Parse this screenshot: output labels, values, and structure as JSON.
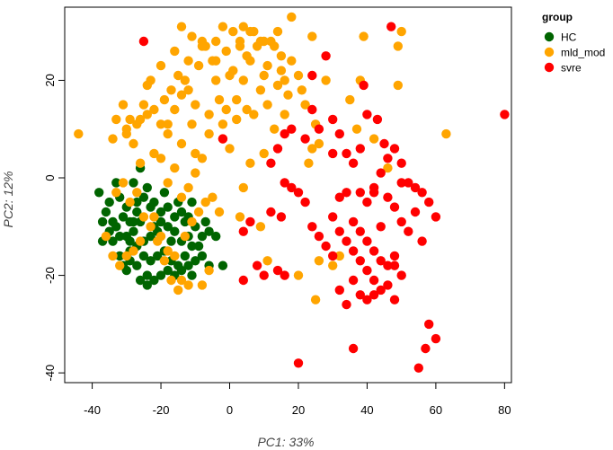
{
  "chart_data": {
    "type": "scatter",
    "xlabel": "PC1: 33%",
    "ylabel": "PC2: 12%",
    "xlim": [
      -48,
      82
    ],
    "ylim": [
      -42,
      35
    ],
    "xticks": [
      -40,
      -20,
      0,
      20,
      40,
      60,
      80
    ],
    "yticks": [
      -40,
      -20,
      0,
      20
    ],
    "grid": false,
    "legend": {
      "title": "group",
      "position": "top-right"
    },
    "series": [
      {
        "name": "HC",
        "color": "#006400",
        "points": [
          [
            -38,
            -3
          ],
          [
            -36,
            -7
          ],
          [
            -35,
            -5
          ],
          [
            -33,
            -1
          ],
          [
            -32,
            -4
          ],
          [
            -34,
            -9
          ],
          [
            -37,
            -9
          ],
          [
            -35,
            -11
          ],
          [
            -33,
            -10
          ],
          [
            -31,
            -8
          ],
          [
            -30,
            -6
          ],
          [
            -29,
            -9
          ],
          [
            -27,
            -7
          ],
          [
            -26,
            -9
          ],
          [
            -28,
            -11
          ],
          [
            -30,
            -12
          ],
          [
            -32,
            -12
          ],
          [
            -34,
            -13
          ],
          [
            -37,
            -13
          ],
          [
            -32,
            -16
          ],
          [
            -29,
            -15
          ],
          [
            -27,
            -14
          ],
          [
            -25,
            -13
          ],
          [
            -23,
            -12
          ],
          [
            -22,
            -10
          ],
          [
            -20,
            -9
          ],
          [
            -18,
            -10
          ],
          [
            -16,
            -11
          ],
          [
            -14,
            -13
          ],
          [
            -12,
            -12
          ],
          [
            -10,
            -10
          ],
          [
            -8,
            -12
          ],
          [
            -6,
            -11
          ],
          [
            -4,
            -12
          ],
          [
            -11,
            -14
          ],
          [
            -13,
            -16
          ],
          [
            -15,
            -18
          ],
          [
            -17,
            -17
          ],
          [
            -19,
            -15
          ],
          [
            -21,
            -16
          ],
          [
            -23,
            -17
          ],
          [
            -25,
            -16
          ],
          [
            -27,
            -18
          ],
          [
            -29,
            -17
          ],
          [
            -31,
            -18
          ],
          [
            -30,
            -19
          ],
          [
            -24,
            -20
          ],
          [
            -22,
            -21
          ],
          [
            -20,
            -20
          ],
          [
            -18,
            -19
          ],
          [
            -16,
            -20
          ],
          [
            -14,
            -19
          ],
          [
            -12,
            -18
          ],
          [
            -10,
            -17
          ],
          [
            -8,
            -16
          ],
          [
            -6,
            -18
          ],
          [
            -24,
            -22
          ],
          [
            -26,
            -21
          ],
          [
            -28,
            -1
          ],
          [
            -26,
            2
          ],
          [
            -24,
            -2
          ],
          [
            -22,
            -5
          ],
          [
            -20,
            -7
          ],
          [
            -18,
            -6
          ],
          [
            -16,
            -8
          ],
          [
            -14,
            -7
          ],
          [
            -12,
            -8
          ],
          [
            -15,
            -5
          ],
          [
            -19,
            -3
          ],
          [
            -23,
            -6
          ],
          [
            -25,
            -4
          ],
          [
            -27,
            -5
          ],
          [
            -21,
            -11
          ],
          [
            -17,
            -13
          ],
          [
            -13,
            -9
          ],
          [
            -9,
            -14
          ],
          [
            -11,
            -20
          ],
          [
            -2,
            -18
          ],
          [
            -7,
            -9
          ],
          [
            -11,
            -5
          ],
          [
            -28,
            -9
          ],
          [
            -29,
            -13
          ]
        ]
      },
      {
        "name": "mld_mod",
        "color": "#FFA500",
        "points": [
          [
            -44,
            9
          ],
          [
            -34,
            8
          ],
          [
            -33,
            12
          ],
          [
            -31,
            15
          ],
          [
            -30,
            9
          ],
          [
            -29,
            12
          ],
          [
            -28,
            7
          ],
          [
            -27,
            11
          ],
          [
            -26,
            3
          ],
          [
            -25,
            15
          ],
          [
            -24,
            13
          ],
          [
            -23,
            20
          ],
          [
            -22,
            5
          ],
          [
            -20,
            11
          ],
          [
            -19,
            16
          ],
          [
            -18,
            9
          ],
          [
            -17,
            18
          ],
          [
            -16,
            14
          ],
          [
            -15,
            21
          ],
          [
            -14,
            17
          ],
          [
            -13,
            20
          ],
          [
            -12,
            24
          ],
          [
            -11,
            11
          ],
          [
            -10,
            15
          ],
          [
            -9,
            23
          ],
          [
            -8,
            28
          ],
          [
            -7,
            27
          ],
          [
            -6,
            13
          ],
          [
            -5,
            24
          ],
          [
            -4,
            20
          ],
          [
            -3,
            16
          ],
          [
            -2,
            11
          ],
          [
            -1,
            14
          ],
          [
            0,
            6
          ],
          [
            1,
            22
          ],
          [
            2,
            16
          ],
          [
            3,
            28
          ],
          [
            4,
            20
          ],
          [
            5,
            14
          ],
          [
            6,
            24
          ],
          [
            7,
            13
          ],
          [
            8,
            27
          ],
          [
            9,
            18
          ],
          [
            10,
            21
          ],
          [
            11,
            15
          ],
          [
            12,
            28
          ],
          [
            13,
            10
          ],
          [
            14,
            19
          ],
          [
            15,
            22
          ],
          [
            16,
            13
          ],
          [
            17,
            17
          ],
          [
            18,
            24
          ],
          [
            -14,
            31
          ],
          [
            -11,
            29
          ],
          [
            -8,
            27
          ],
          [
            -4,
            28
          ],
          [
            -1,
            26
          ],
          [
            1,
            30
          ],
          [
            4,
            31
          ],
          [
            3,
            27
          ],
          [
            5,
            25
          ],
          [
            7,
            30
          ],
          [
            9,
            28
          ],
          [
            11,
            23
          ],
          [
            13,
            27
          ],
          [
            16,
            20
          ],
          [
            18,
            33
          ],
          [
            20,
            21
          ],
          [
            22,
            15
          ],
          [
            24,
            29
          ],
          [
            25,
            11
          ],
          [
            26,
            7
          ],
          [
            24,
            6
          ],
          [
            23,
            3
          ],
          [
            25,
            -25
          ],
          [
            35,
            16
          ],
          [
            37,
            10
          ],
          [
            39,
            29
          ],
          [
            42,
            8
          ],
          [
            49,
            27
          ],
          [
            49,
            19
          ],
          [
            50,
            30
          ],
          [
            63,
            9
          ],
          [
            46,
            2
          ],
          [
            -24,
            19
          ],
          [
            -20,
            4
          ],
          [
            -18,
            -1
          ],
          [
            -16,
            2
          ],
          [
            -14,
            -4
          ],
          [
            -12,
            -2
          ],
          [
            -10,
            1
          ],
          [
            -22,
            -8
          ],
          [
            -20,
            -12
          ],
          [
            -18,
            -15
          ],
          [
            -16,
            -16
          ],
          [
            -14,
            -21
          ],
          [
            -12,
            -22
          ],
          [
            -8,
            -22
          ],
          [
            -6,
            -19
          ],
          [
            -26,
            -13
          ],
          [
            -28,
            -15
          ],
          [
            -30,
            -16
          ],
          [
            -32,
            -18
          ],
          [
            -34,
            -16
          ],
          [
            -36,
            -12
          ],
          [
            -33,
            -3
          ],
          [
            -31,
            -1
          ],
          [
            -29,
            -5
          ],
          [
            -27,
            -3
          ],
          [
            -25,
            -8
          ],
          [
            -23,
            -10
          ],
          [
            -21,
            -13
          ],
          [
            -19,
            -17
          ],
          [
            -17,
            -21
          ],
          [
            -15,
            -23
          ],
          [
            -13,
            -12
          ],
          [
            -11,
            -9
          ],
          [
            -9,
            -7
          ],
          [
            -7,
            -5
          ],
          [
            -5,
            -4
          ],
          [
            -3,
            -7
          ],
          [
            3,
            -8
          ],
          [
            4,
            -2
          ],
          [
            9,
            -10
          ],
          [
            11,
            -17
          ],
          [
            20,
            -20
          ],
          [
            26,
            -17
          ],
          [
            30,
            -18
          ],
          [
            32,
            -16
          ],
          [
            6,
            3
          ],
          [
            2,
            12
          ],
          [
            -2,
            8
          ],
          [
            -6,
            9
          ],
          [
            -10,
            5
          ],
          [
            -14,
            7
          ],
          [
            -18,
            11
          ],
          [
            -22,
            14
          ],
          [
            -26,
            12
          ],
          [
            -30,
            10
          ],
          [
            10,
            28
          ],
          [
            14,
            30
          ],
          [
            -2,
            31
          ],
          [
            -16,
            26
          ],
          [
            -20,
            23
          ],
          [
            -12,
            18
          ],
          [
            -4,
            24
          ],
          [
            0,
            21
          ],
          [
            6,
            30
          ],
          [
            15,
            25
          ],
          [
            21,
            18
          ],
          [
            28,
            20
          ],
          [
            38,
            20
          ],
          [
            10,
            5
          ],
          [
            -8,
            4
          ]
        ]
      },
      {
        "name": "svre",
        "color": "#FF0000",
        "points": [
          [
            -25,
            28
          ],
          [
            -2,
            8
          ],
          [
            28,
            25
          ],
          [
            24,
            21
          ],
          [
            16,
            9
          ],
          [
            18,
            10
          ],
          [
            14,
            6
          ],
          [
            12,
            3
          ],
          [
            22,
            8
          ],
          [
            24,
            14
          ],
          [
            26,
            10
          ],
          [
            30,
            12
          ],
          [
            32,
            9
          ],
          [
            34,
            5
          ],
          [
            36,
            3
          ],
          [
            38,
            -3
          ],
          [
            40,
            -5
          ],
          [
            42,
            -2
          ],
          [
            44,
            1
          ],
          [
            46,
            -4
          ],
          [
            48,
            -6
          ],
          [
            50,
            -9
          ],
          [
            52,
            -11
          ],
          [
            54,
            -7
          ],
          [
            56,
            -3
          ],
          [
            58,
            -5
          ],
          [
            60,
            -8
          ],
          [
            30,
            -8
          ],
          [
            32,
            -11
          ],
          [
            34,
            -13
          ],
          [
            36,
            -15
          ],
          [
            38,
            -17
          ],
          [
            40,
            -19
          ],
          [
            42,
            -21
          ],
          [
            44,
            -23
          ],
          [
            46,
            -18
          ],
          [
            48,
            -16
          ],
          [
            50,
            -20
          ],
          [
            26,
            -12
          ],
          [
            28,
            -14
          ],
          [
            30,
            -16
          ],
          [
            24,
            -10
          ],
          [
            22,
            -5
          ],
          [
            20,
            -3
          ],
          [
            18,
            -2
          ],
          [
            16,
            -1
          ],
          [
            34,
            -3
          ],
          [
            36,
            -9
          ],
          [
            38,
            -11
          ],
          [
            40,
            -13
          ],
          [
            42,
            -15
          ],
          [
            44,
            -17
          ],
          [
            39,
            19
          ],
          [
            40,
            13
          ],
          [
            43,
            12
          ],
          [
            45,
            7
          ],
          [
            48,
            6
          ],
          [
            50,
            3
          ],
          [
            52,
            -1
          ],
          [
            54,
            -2
          ],
          [
            56,
            -13
          ],
          [
            58,
            -30
          ],
          [
            60,
            -33
          ],
          [
            57,
            -35
          ],
          [
            55,
            -39
          ],
          [
            36,
            -35
          ],
          [
            20,
            -38
          ],
          [
            32,
            -23
          ],
          [
            34,
            -26
          ],
          [
            38,
            -24
          ],
          [
            40,
            -25
          ],
          [
            42,
            -24
          ],
          [
            46,
            -22
          ],
          [
            48,
            -25
          ],
          [
            36,
            -21
          ],
          [
            80,
            13
          ],
          [
            47,
            31
          ],
          [
            4,
            -21
          ],
          [
            14,
            -19
          ],
          [
            8,
            -18
          ],
          [
            10,
            -20
          ],
          [
            16,
            -20
          ],
          [
            4,
            -11
          ],
          [
            6,
            -9
          ],
          [
            12,
            -7
          ],
          [
            15,
            -8
          ],
          [
            48,
            -18
          ],
          [
            50,
            -1
          ],
          [
            46,
            4
          ],
          [
            44,
            -10
          ],
          [
            42,
            -3
          ],
          [
            38,
            6
          ],
          [
            30,
            5
          ],
          [
            32,
            -4
          ]
        ]
      }
    ]
  }
}
